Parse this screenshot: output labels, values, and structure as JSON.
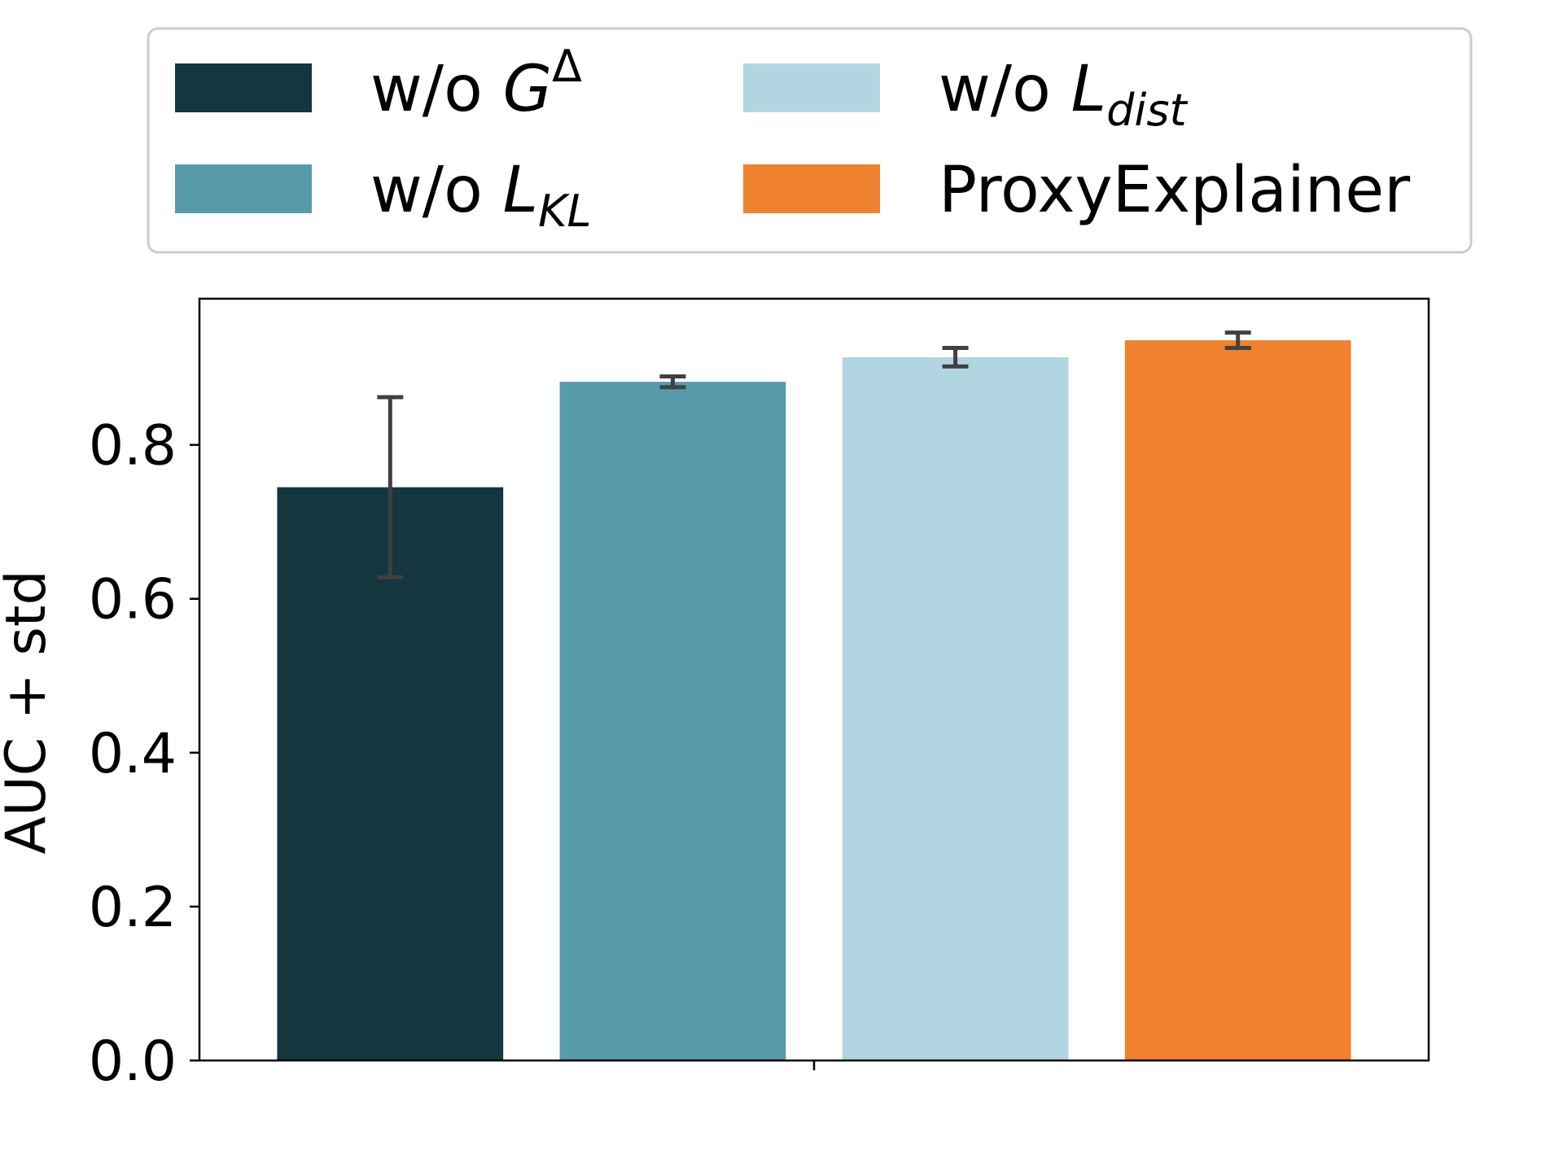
{
  "chart_data": {
    "type": "bar",
    "ylabel": "AUC + std",
    "ylim": [
      0,
      0.99
    ],
    "yticks": [
      "0.0",
      "0.2",
      "0.4",
      "0.6",
      "0.8"
    ],
    "grid": false,
    "legend_position": "top",
    "series": [
      {
        "name": "w/o G^Δ",
        "value": 0.745,
        "std": 0.117,
        "color": "#14363f",
        "legend": {
          "prefix": "w/o ",
          "math": "G",
          "sup": "Δ",
          "sub": ""
        }
      },
      {
        "name": "w/o L_KL",
        "value": 0.882,
        "std": 0.007,
        "color": "#579bab",
        "legend": {
          "prefix": "w/o ",
          "math": "L",
          "sup": "",
          "sub": "KL"
        }
      },
      {
        "name": "w/o L_dist",
        "value": 0.914,
        "std": 0.012,
        "color": "#b2d6e1",
        "legend": {
          "prefix": "w/o ",
          "math": "L",
          "sup": "",
          "sub": "dist"
        }
      },
      {
        "name": "ProxyExplainer",
        "value": 0.936,
        "std": 0.01,
        "color": "#ef812f",
        "legend": {
          "prefix": "ProxyExplainer",
          "math": "",
          "sup": "",
          "sub": ""
        }
      }
    ],
    "errorbar_color": "#404040"
  }
}
